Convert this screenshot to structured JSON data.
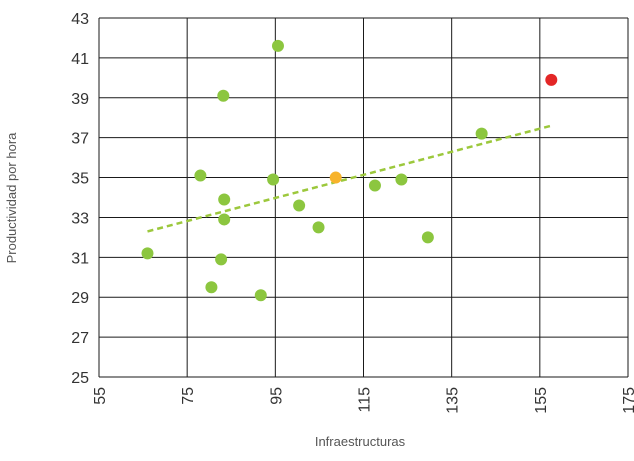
{
  "chart_data": {
    "type": "scatter",
    "xlabel": "Infraestructuras",
    "ylabel": "Productividad por hora",
    "xlim": [
      55,
      175
    ],
    "ylim": [
      25,
      43
    ],
    "xticks": [
      55,
      75,
      95,
      115,
      135,
      155,
      175
    ],
    "yticks": [
      25,
      27,
      29,
      31,
      33,
      35,
      37,
      39,
      41,
      43
    ],
    "grid": true,
    "colors": {
      "points": "#8cc63f",
      "highlight_orange": "#f7b32b",
      "highlight_red": "#e32626",
      "trendline": "#9cc83c",
      "grid": "#1a1a1a",
      "text": "#333333",
      "axis_title": "#555555"
    },
    "points": [
      {
        "x": 66.0,
        "y": 31.2,
        "color": "points"
      },
      {
        "x": 78.0,
        "y": 35.1,
        "color": "points"
      },
      {
        "x": 80.5,
        "y": 29.5,
        "color": "points"
      },
      {
        "x": 82.7,
        "y": 30.9,
        "color": "points"
      },
      {
        "x": 83.2,
        "y": 39.1,
        "color": "points"
      },
      {
        "x": 83.4,
        "y": 33.9,
        "color": "points"
      },
      {
        "x": 83.4,
        "y": 32.9,
        "color": "points"
      },
      {
        "x": 91.7,
        "y": 29.1,
        "color": "points"
      },
      {
        "x": 94.5,
        "y": 34.9,
        "color": "points"
      },
      {
        "x": 95.6,
        "y": 41.6,
        "color": "points"
      },
      {
        "x": 100.4,
        "y": 33.6,
        "color": "points"
      },
      {
        "x": 104.8,
        "y": 32.5,
        "color": "points"
      },
      {
        "x": 108.7,
        "y": 35.0,
        "color": "highlight_orange"
      },
      {
        "x": 117.6,
        "y": 34.6,
        "color": "points"
      },
      {
        "x": 123.6,
        "y": 34.9,
        "color": "points"
      },
      {
        "x": 129.6,
        "y": 32.0,
        "color": "points"
      },
      {
        "x": 141.8,
        "y": 37.2,
        "color": "points"
      },
      {
        "x": 157.6,
        "y": 39.9,
        "color": "highlight_red"
      }
    ],
    "trendline": {
      "x": [
        66.0,
        157.6
      ],
      "y": [
        32.3,
        37.6
      ],
      "style": "dashed"
    }
  }
}
